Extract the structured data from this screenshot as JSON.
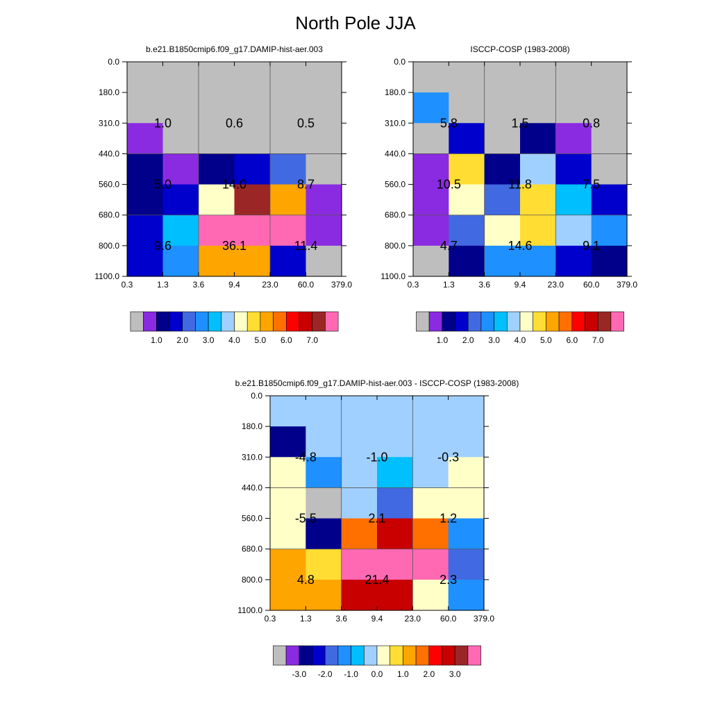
{
  "figure": {
    "title": "North Pole JJA"
  },
  "axes": {
    "x_ticks": [
      "0.3",
      "1.3",
      "3.6",
      "9.4",
      "23.0",
      "60.0",
      "379.0"
    ],
    "y_ticks": [
      "0.0",
      "180.0",
      "310.0",
      "440.0",
      "560.0",
      "680.0",
      "800.0",
      "1100.0"
    ]
  },
  "chart_data": [
    {
      "type": "heatmap",
      "title": "b.e21.B1850cmip6.f09_g17.DAMIP-hist-aer.003",
      "grid_colors": [
        [
          "#BEBEBE",
          "#BEBEBE",
          "#BEBEBE",
          "#BEBEBE",
          "#BEBEBE",
          "#BEBEBE"
        ],
        [
          "#BEBEBE",
          "#BEBEBE",
          "#BEBEBE",
          "#BEBEBE",
          "#BEBEBE",
          "#BEBEBE"
        ],
        [
          "#8A2BE2",
          "#BEBEBE",
          "#BEBEBE",
          "#BEBEBE",
          "#BEBEBE",
          "#BEBEBE"
        ],
        [
          "#00008B",
          "#8A2BE2",
          "#00008B",
          "#0000CD",
          "#4169E1",
          "#BEBEBE"
        ],
        [
          "#00008B",
          "#0000CD",
          "#FFFFC8",
          "#9B2626",
          "#FFA500",
          "#8A2BE2"
        ],
        [
          "#0000CD",
          "#00BFFF",
          "#FF69B4",
          "#FF69B4",
          "#FF69B4",
          "#8A2BE2"
        ],
        [
          "#0000CD",
          "#1E90FF",
          "#FFA500",
          "#FFA500",
          "#0000CD",
          "#BEBEBE"
        ]
      ],
      "summary_values": [
        [
          "1.0",
          "0.6",
          "0.5"
        ],
        [
          "5.0",
          "14.0",
          "8.7"
        ],
        [
          "9.6",
          "36.1",
          "11.4"
        ]
      ],
      "colorbar": {
        "colors": [
          "#BEBEBE",
          "#8A2BE2",
          "#00008B",
          "#0000CD",
          "#4169E1",
          "#1E90FF",
          "#00BFFF",
          "#A0D0FF",
          "#FFFFC8",
          "#FFDD33",
          "#FFA500",
          "#FF7000",
          "#FF0000",
          "#C80000",
          "#9B2626",
          "#FF69B4"
        ],
        "labels": [
          "1.0",
          "2.0",
          "3.0",
          "4.0",
          "5.0",
          "6.0",
          "7.0"
        ]
      }
    },
    {
      "type": "heatmap",
      "title": "ISCCP-COSP (1983-2008)",
      "grid_colors": [
        [
          "#BEBEBE",
          "#BEBEBE",
          "#BEBEBE",
          "#BEBEBE",
          "#BEBEBE",
          "#BEBEBE"
        ],
        [
          "#1E90FF",
          "#BEBEBE",
          "#BEBEBE",
          "#BEBEBE",
          "#BEBEBE",
          "#BEBEBE"
        ],
        [
          "#BEBEBE",
          "#0000CD",
          "#BEBEBE",
          "#00008B",
          "#8A2BE2",
          "#BEBEBE"
        ],
        [
          "#8A2BE2",
          "#FFDD33",
          "#00008B",
          "#A0D0FF",
          "#0000CD",
          "#BEBEBE"
        ],
        [
          "#8A2BE2",
          "#FFFFC8",
          "#4169E1",
          "#FFDD33",
          "#00BFFF",
          "#0000CD"
        ],
        [
          "#8A2BE2",
          "#4169E1",
          "#FFFFC8",
          "#FFDD33",
          "#A0D0FF",
          "#1E90FF"
        ],
        [
          "#BEBEBE",
          "#00008B",
          "#1E90FF",
          "#1E90FF",
          "#0000CD",
          "#00008B"
        ]
      ],
      "summary_values": [
        [
          "5.8",
          "1.5",
          "0.8"
        ],
        [
          "10.5",
          "11.8",
          "7.5"
        ],
        [
          "4.7",
          "14.6",
          "9.1"
        ]
      ],
      "colorbar": {
        "colors": [
          "#BEBEBE",
          "#8A2BE2",
          "#00008B",
          "#0000CD",
          "#4169E1",
          "#1E90FF",
          "#00BFFF",
          "#A0D0FF",
          "#FFFFC8",
          "#FFDD33",
          "#FFA500",
          "#FF7000",
          "#FF0000",
          "#C80000",
          "#9B2626",
          "#FF69B4"
        ],
        "labels": [
          "1.0",
          "2.0",
          "3.0",
          "4.0",
          "5.0",
          "6.0",
          "7.0"
        ]
      }
    },
    {
      "type": "heatmap",
      "title": "b.e21.B1850cmip6.f09_g17.DAMIP-hist-aer.003 - ISCCP-COSP (1983-2008)",
      "grid_colors": [
        [
          "#A0D0FF",
          "#A0D0FF",
          "#A0D0FF",
          "#A0D0FF",
          "#A0D0FF",
          "#A0D0FF"
        ],
        [
          "#00008B",
          "#A0D0FF",
          "#A0D0FF",
          "#A0D0FF",
          "#A0D0FF",
          "#A0D0FF"
        ],
        [
          "#FFFFC8",
          "#1E90FF",
          "#A0D0FF",
          "#00BFFF",
          "#A0D0FF",
          "#FFFFC8"
        ],
        [
          "#FFFFC8",
          "#BEBEBE",
          "#A0D0FF",
          "#4169E1",
          "#FFFFC8",
          "#FFFFC8"
        ],
        [
          "#FFFFC8",
          "#00008B",
          "#FF7000",
          "#C80000",
          "#FF7000",
          "#1E90FF"
        ],
        [
          "#FFA500",
          "#FFDD33",
          "#FF69B4",
          "#FF69B4",
          "#FF69B4",
          "#4169E1"
        ],
        [
          "#FFA500",
          "#FFA500",
          "#C80000",
          "#C80000",
          "#FFFFC8",
          "#1E90FF"
        ]
      ],
      "summary_values": [
        [
          "-4.8",
          "-1.0",
          "-0.3"
        ],
        [
          "-5.5",
          "2.1",
          "1.2"
        ],
        [
          "4.8",
          "21.4",
          "2.3"
        ]
      ],
      "colorbar": {
        "colors": [
          "#BEBEBE",
          "#8A2BE2",
          "#00008B",
          "#0000CD",
          "#4169E1",
          "#1E90FF",
          "#00BFFF",
          "#A0D0FF",
          "#FFFFC8",
          "#FFDD33",
          "#FFA500",
          "#FF7000",
          "#FF0000",
          "#C80000",
          "#9B2626",
          "#FF69B4"
        ],
        "labels": [
          "-3.0",
          "-2.0",
          "-1.0",
          "0.0",
          "1.0",
          "2.0",
          "3.0"
        ]
      }
    }
  ]
}
